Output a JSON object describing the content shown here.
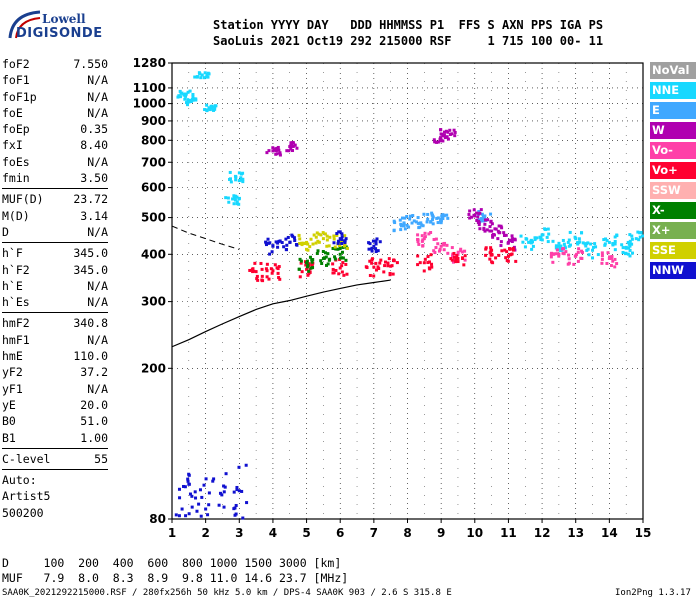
{
  "logo": {
    "line1": "Lowell",
    "line2": "DIGISONDE"
  },
  "header": {
    "line1": "Station YYYY DAY   DDD HHMMSS P1  FFS S AXN PPS IGA PS",
    "line2": "SaoLuis 2021 Oct19 292 215000 RSF     1 715 100 00- 11"
  },
  "params": {
    "group1": [
      {
        "k": "foF2",
        "v": "7.550"
      },
      {
        "k": "foF1",
        "v": "N/A"
      },
      {
        "k": "foF1p",
        "v": "N/A"
      },
      {
        "k": "foE",
        "v": "N/A"
      },
      {
        "k": "foEp",
        "v": "0.35"
      },
      {
        "k": "fxI",
        "v": "8.40"
      },
      {
        "k": "foEs",
        "v": "N/A"
      },
      {
        "k": "fmin",
        "v": "3.50"
      }
    ],
    "group2": [
      {
        "k": "MUF(D)",
        "v": "23.72"
      },
      {
        "k": "M(D)",
        "v": "3.14"
      },
      {
        "k": "D",
        "v": "N/A"
      }
    ],
    "group3": [
      {
        "k": "h`F",
        "v": "345.0"
      },
      {
        "k": "h`F2",
        "v": "345.0"
      },
      {
        "k": "h`E",
        "v": "N/A"
      },
      {
        "k": "h`Es",
        "v": "N/A"
      }
    ],
    "group4": [
      {
        "k": "hmF2",
        "v": "340.8"
      },
      {
        "k": "hmF1",
        "v": "N/A"
      },
      {
        "k": "hmE",
        "v": "110.0"
      },
      {
        "k": "yF2",
        "v": "37.2"
      },
      {
        "k": "yF1",
        "v": "N/A"
      },
      {
        "k": "yE",
        "v": "20.0"
      },
      {
        "k": "B0",
        "v": "51.0"
      },
      {
        "k": "B1",
        "v": "1.00"
      }
    ],
    "clevel": {
      "k": "C-level",
      "v": "55"
    },
    "auto": [
      "Auto:",
      "Artist5",
      "500200"
    ]
  },
  "legend": [
    {
      "label": "NoVal",
      "color": "#a0a0a0"
    },
    {
      "label": "NNE",
      "color": "#18d8ff"
    },
    {
      "label": "E",
      "color": "#40a8ff"
    },
    {
      "label": "W",
      "color": "#b000b0"
    },
    {
      "label": "Vo-",
      "color": "#ff40a8"
    },
    {
      "label": "Vo+",
      "color": "#ff0030"
    },
    {
      "label": "SSW",
      "color": "#ffb0b0"
    },
    {
      "label": "X-",
      "color": "#008000"
    },
    {
      "label": "X+",
      "color": "#78b050"
    },
    {
      "label": "SSE",
      "color": "#d0d000"
    },
    {
      "label": "NNW",
      "color": "#1010d0"
    }
  ],
  "chart_data": {
    "type": "scatter",
    "title": "",
    "xlabel": "",
    "ylabel": "",
    "xlim": [
      1,
      15
    ],
    "ylim": [
      80,
      1280
    ],
    "y_scale": "log",
    "x_ticks": [
      1,
      2,
      3,
      4,
      5,
      6,
      7,
      8,
      9,
      10,
      11,
      12,
      13,
      14,
      15
    ],
    "y_ticks": [
      80,
      200,
      300,
      400,
      500,
      600,
      700,
      800,
      900,
      1000,
      1100,
      1280
    ],
    "grid": true,
    "series": [
      {
        "name": "NNE",
        "values": [
          [
            11.6,
            430
          ],
          [
            12,
            450
          ],
          [
            12.5,
            420
          ],
          [
            13,
            440
          ],
          [
            13.5,
            410
          ],
          [
            14,
            430
          ],
          [
            14.5,
            415
          ],
          [
            14.8,
            440
          ],
          [
            1.4,
            1060
          ],
          [
            1.5,
            1010
          ],
          [
            2.1,
            975
          ],
          [
            1.9,
            1190
          ],
          [
            2.8,
            560
          ],
          [
            2.9,
            640
          ]
        ]
      },
      {
        "name": "E",
        "values": [
          [
            7.8,
            480
          ],
          [
            8.2,
            490
          ],
          [
            8.6,
            495
          ],
          [
            9,
            495
          ],
          [
            10.3,
            505
          ]
        ]
      },
      {
        "name": "W",
        "values": [
          [
            4,
            750
          ],
          [
            4.5,
            770
          ],
          [
            9,
            800
          ],
          [
            9.2,
            840
          ],
          [
            10,
            505
          ],
          [
            10.3,
            480
          ],
          [
            10.7,
            460
          ],
          [
            11,
            430
          ]
        ]
      },
      {
        "name": "Vo-",
        "values": [
          [
            8.5,
            440
          ],
          [
            9,
            420
          ],
          [
            9.5,
            400
          ],
          [
            12.5,
            400
          ],
          [
            13,
            395
          ],
          [
            14,
            390
          ]
        ]
      },
      {
        "name": "Vo+",
        "values": [
          [
            3.5,
            360
          ],
          [
            4,
            362
          ],
          [
            5,
            365
          ],
          [
            6,
            368
          ],
          [
            7,
            370
          ],
          [
            7.5,
            372
          ],
          [
            8.5,
            380
          ],
          [
            9.5,
            390
          ],
          [
            10.5,
            400
          ],
          [
            11,
            395
          ]
        ]
      },
      {
        "name": "X-",
        "values": [
          [
            5,
            380
          ],
          [
            5.5,
            390
          ],
          [
            6,
            400
          ]
        ]
      },
      {
        "name": "SSE",
        "values": [
          [
            5,
            430
          ],
          [
            5.5,
            440
          ],
          [
            6,
            430
          ]
        ]
      },
      {
        "name": "NNW",
        "values": [
          [
            1.3,
            85
          ],
          [
            1.6,
            86
          ],
          [
            2,
            85
          ],
          [
            2.4,
            87
          ],
          [
            3,
            95
          ],
          [
            4,
            420
          ],
          [
            4.5,
            430
          ],
          [
            6,
            440
          ],
          [
            7,
            420
          ]
        ]
      }
    ],
    "profile": {
      "x": [
        1,
        1.5,
        2,
        2.5,
        3,
        3.5,
        4,
        4.5,
        5,
        5.5,
        6,
        6.5,
        7,
        7.5
      ],
      "y": [
        228,
        238,
        250,
        262,
        274,
        286,
        296,
        302,
        310,
        318,
        325,
        332,
        337,
        342
      ]
    },
    "profile_extrapolated": {
      "x": [
        1,
        1.5,
        2,
        2.5,
        3
      ],
      "y": [
        475,
        455,
        440,
        425,
        412
      ]
    }
  },
  "bottom": {
    "d_line": "D     100  200  400  600  800 1000 1500 3000 [km]",
    "muf_line": "MUF   7.9  8.0  8.3  8.9  9.8 11.0 14.6 23.7 [MHz]"
  },
  "footer": {
    "left": "SAA0K_2021292215000.RSF / 280fx256h 50 kHz 5.0 km / DPS-4 SAA0K 903 / 2.6 S 315.8 E",
    "right": "Ion2Png 1.3.17"
  }
}
